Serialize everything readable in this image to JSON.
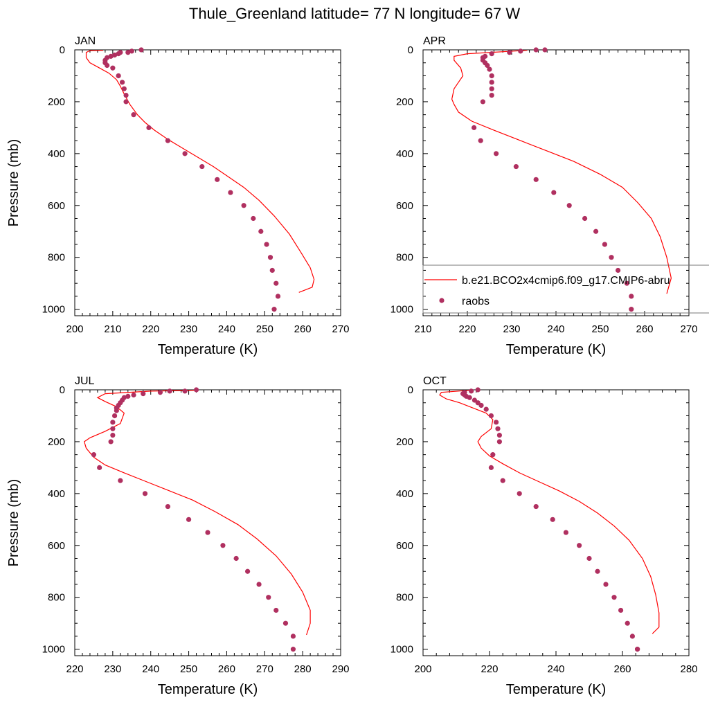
{
  "title": "Thule_Greenland  latitude= 77 N longitude= 67 W",
  "colors": {
    "model": "#ff0000",
    "obs": "#b03060"
  },
  "legend": {
    "model_label": "b.e21.BCO2x4cmip6.f09_g17.CMIP6-abru",
    "obs_label": "raobs",
    "placement": "inside APR panel, lower right"
  },
  "chart_data": [
    {
      "type": "scatter",
      "panel": "JAN",
      "xlabel": "Temperature (K)",
      "ylabel": "Pressure (mb)",
      "xlim": [
        200,
        270
      ],
      "ylim": [
        1025,
        0
      ],
      "xticks": [
        200,
        210,
        220,
        230,
        240,
        250,
        260,
        270
      ],
      "yticks": [
        0,
        200,
        400,
        600,
        800,
        1000
      ],
      "series": [
        {
          "name": "b.e21.BCO2x4cmip6.f09_g17.CMIP6-abru",
          "kind": "line",
          "x": [
            207.5,
            204,
            203,
            203,
            204,
            206.5,
            209,
            211,
            212,
            213,
            214.5,
            216.5,
            218.5,
            221,
            224.5,
            228.5,
            232.5,
            236.5,
            240.5,
            244.5,
            248.5,
            252.5,
            256.5,
            259.5,
            262,
            263,
            262.5,
            259
          ],
          "y": [
            2,
            3,
            10,
            30,
            50,
            70,
            90,
            115,
            140,
            170,
            210,
            250,
            280,
            310,
            345,
            380,
            415,
            450,
            490,
            530,
            580,
            640,
            710,
            780,
            840,
            885,
            915,
            935
          ]
        },
        {
          "name": "raobs",
          "kind": "markers",
          "x": [
            217.5,
            215,
            214,
            212,
            211.5,
            210.5,
            209.5,
            208.5,
            208,
            208,
            208.5,
            210,
            211.5,
            212.5,
            213,
            213.5,
            213.5,
            215.5,
            219.5,
            224.5,
            229,
            233.5,
            237.5,
            241,
            244.5,
            247,
            249,
            250.5,
            251.5,
            252,
            253,
            253.5,
            252.5
          ],
          "y": [
            0,
            5,
            10,
            10,
            15,
            20,
            25,
            30,
            40,
            50,
            60,
            70,
            100,
            125,
            150,
            175,
            200,
            250,
            300,
            350,
            400,
            450,
            500,
            550,
            600,
            650,
            700,
            750,
            800,
            850,
            900,
            950,
            1000
          ]
        }
      ]
    },
    {
      "type": "scatter",
      "panel": "APR",
      "xlabel": "Temperature (K)",
      "ylabel": "",
      "xlim": [
        210,
        270
      ],
      "ylim": [
        1025,
        0
      ],
      "xticks": [
        210,
        220,
        230,
        240,
        250,
        260,
        270
      ],
      "yticks": [
        0,
        200,
        400,
        600,
        800,
        1000
      ],
      "series": [
        {
          "name": "b.e21.BCO2x4cmip6.f09_g17.CMIP6-abru",
          "kind": "line",
          "x": [
            233.5,
            220,
            217,
            217,
            218.5,
            219,
            218,
            217,
            216.5,
            217,
            218,
            221,
            226,
            232,
            238,
            244,
            250,
            255,
            258.5,
            261.5,
            263.5,
            265,
            266,
            265
          ],
          "y": [
            2,
            15,
            25,
            40,
            70,
            100,
            125,
            150,
            190,
            210,
            240,
            275,
            310,
            350,
            390,
            430,
            480,
            530,
            590,
            650,
            720,
            800,
            880,
            940
          ]
        },
        {
          "name": "raobs",
          "kind": "markers",
          "x": [
            237.5,
            235.5,
            232,
            229.5,
            225.5,
            224,
            223.5,
            223.5,
            224,
            224.5,
            225,
            225.5,
            225.5,
            225.5,
            225.5,
            223.5,
            221.5,
            223,
            226.5,
            231,
            235.5,
            239.5,
            243,
            246.5,
            249,
            251,
            252.5,
            254,
            256,
            257,
            257
          ],
          "y": [
            0,
            0,
            5,
            10,
            15,
            25,
            30,
            40,
            50,
            60,
            75,
            100,
            125,
            150,
            175,
            200,
            300,
            350,
            400,
            450,
            500,
            550,
            600,
            650,
            700,
            750,
            800,
            850,
            900,
            950,
            1000
          ]
        }
      ]
    },
    {
      "type": "scatter",
      "panel": "JUL",
      "xlabel": "Temperature (K)",
      "ylabel": "Pressure (mb)",
      "xlim": [
        220,
        290
      ],
      "ylim": [
        1025,
        0
      ],
      "xticks": [
        220,
        230,
        240,
        250,
        260,
        270,
        280,
        290
      ],
      "yticks": [
        0,
        200,
        400,
        600,
        800,
        1000
      ],
      "series": [
        {
          "name": "b.e21.BCO2x4cmip6.f09_g17.CMIP6-abru",
          "kind": "line",
          "x": [
            252,
            240,
            228,
            226,
            228,
            231,
            233,
            232,
            228,
            224,
            222.5,
            223,
            225,
            228,
            233,
            239,
            245,
            251,
            257,
            263,
            268,
            273,
            277,
            280,
            282,
            282,
            281
          ],
          "y": [
            2,
            5,
            15,
            30,
            45,
            65,
            90,
            130,
            160,
            185,
            200,
            225,
            260,
            290,
            320,
            355,
            390,
            425,
            470,
            520,
            575,
            640,
            710,
            780,
            850,
            900,
            945
          ]
        },
        {
          "name": "raobs",
          "kind": "markers",
          "x": [
            252,
            249,
            245,
            242.5,
            238,
            235.5,
            234,
            233,
            232.5,
            232,
            231.5,
            231,
            231,
            230.5,
            230,
            230,
            230,
            229.5,
            225,
            226.5,
            232,
            238.5,
            244.5,
            250,
            255,
            259,
            262.5,
            265.5,
            268.5,
            271,
            273,
            275.5,
            277.5,
            277.5
          ],
          "y": [
            0,
            5,
            5,
            10,
            15,
            20,
            25,
            30,
            40,
            50,
            60,
            70,
            80,
            100,
            125,
            150,
            175,
            200,
            250,
            300,
            350,
            400,
            450,
            500,
            550,
            600,
            650,
            700,
            750,
            800,
            850,
            900,
            950,
            1000
          ]
        }
      ]
    },
    {
      "type": "scatter",
      "panel": "OCT",
      "xlabel": "Temperature (K)",
      "ylabel": "",
      "xlim": [
        200,
        280
      ],
      "ylim": [
        1025,
        0
      ],
      "xticks": [
        200,
        220,
        240,
        260,
        280
      ],
      "yticks": [
        0,
        200,
        400,
        600,
        800,
        1000
      ],
      "series": [
        {
          "name": "b.e21.BCO2x4cmip6.f09_g17.CMIP6-abru",
          "kind": "line",
          "x": [
            214,
            205.5,
            205,
            207,
            211,
            215,
            219,
            221,
            220.5,
            217.5,
            216.5,
            217.5,
            220,
            224,
            229,
            235,
            241,
            247,
            252.5,
            257.5,
            262,
            266,
            268.5,
            270,
            271,
            271,
            269
          ],
          "y": [
            2,
            10,
            20,
            35,
            50,
            70,
            90,
            115,
            150,
            180,
            200,
            225,
            255,
            285,
            320,
            355,
            390,
            430,
            475,
            525,
            580,
            650,
            720,
            790,
            860,
            915,
            940
          ]
        },
        {
          "name": "raobs",
          "kind": "markers",
          "x": [
            216.5,
            214.5,
            212.5,
            212,
            212.5,
            213,
            214,
            215.5,
            216.5,
            217.5,
            219,
            220.5,
            222,
            222.5,
            223,
            223,
            221,
            220.5,
            224,
            229,
            234,
            239,
            243,
            247,
            250,
            252.5,
            255,
            257.5,
            259.5,
            261.5,
            263,
            264.5,
            264.5
          ],
          "y": [
            0,
            5,
            10,
            15,
            20,
            25,
            30,
            40,
            50,
            60,
            75,
            100,
            125,
            150,
            175,
            200,
            250,
            300,
            350,
            400,
            450,
            500,
            550,
            600,
            650,
            700,
            750,
            800,
            850,
            900,
            950,
            1000,
            1000
          ]
        }
      ]
    }
  ]
}
